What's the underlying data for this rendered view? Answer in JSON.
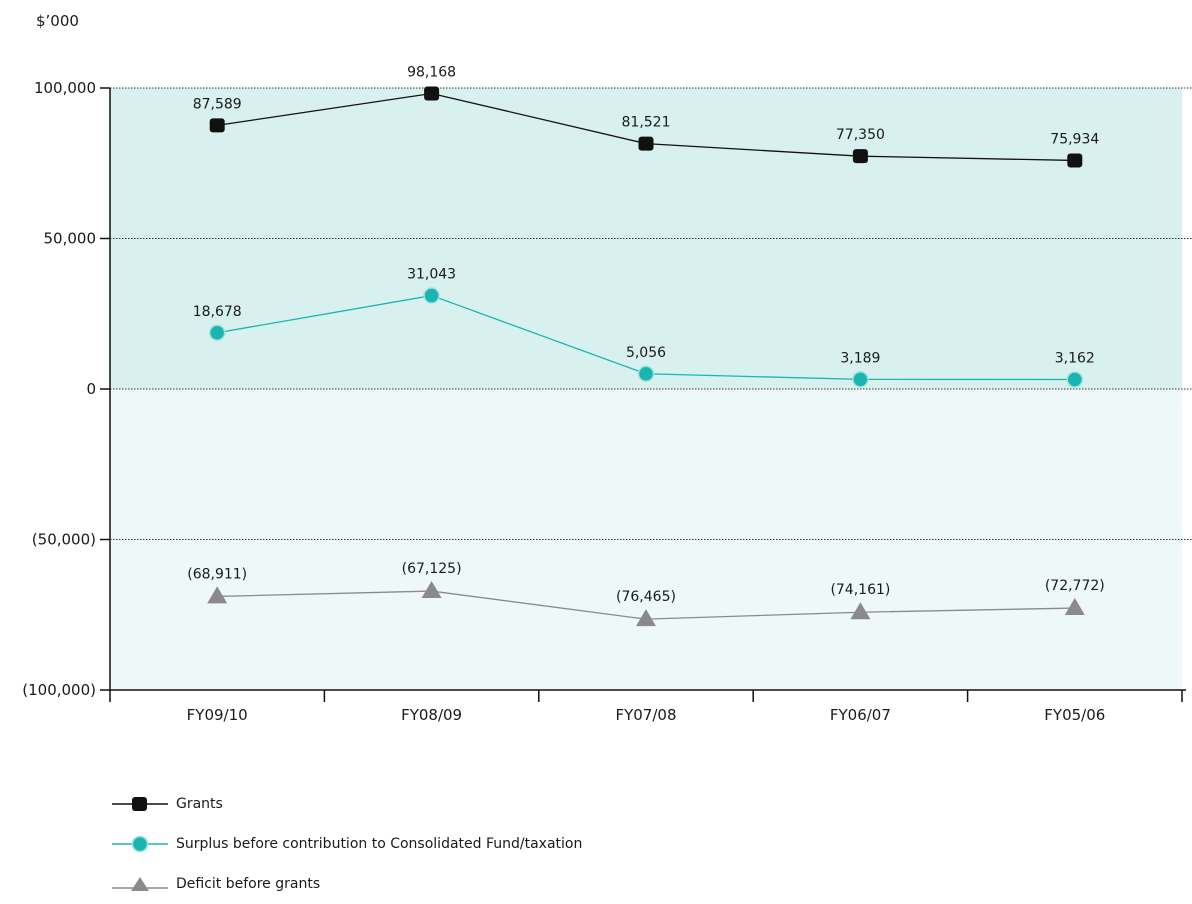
{
  "chart_data": {
    "type": "line",
    "unit_label": "$’000",
    "categories": [
      "FY09/10",
      "FY08/09",
      "FY07/08",
      "FY06/07",
      "FY05/06"
    ],
    "ylim": [
      -100000,
      100000
    ],
    "yticks": [
      100000,
      50000,
      0,
      -50000,
      -100000
    ],
    "ytick_labels": [
      "100,000",
      "50,000",
      "0",
      "(50,000)",
      "(100,000)"
    ],
    "grid": true,
    "legend_position": "bottom-left",
    "colors": {
      "positive_band": "#d8f1ee",
      "negative_band": "#eef8f8",
      "grants": "#111111",
      "surplus": "#1ab5b0",
      "deficit": "#8a8a8a"
    },
    "series": [
      {
        "name": "Grants",
        "marker": "square",
        "values": [
          87589,
          98168,
          81521,
          77350,
          75934
        ],
        "labels": [
          "87,589",
          "98,168",
          "81,521",
          "77,350",
          "75,934"
        ]
      },
      {
        "name": "Surplus before contribution to Consolidated Fund/taxation",
        "marker": "circle",
        "values": [
          18678,
          31043,
          5056,
          3189,
          3162
        ],
        "labels": [
          "18,678",
          "31,043",
          "5,056",
          "3,189",
          "3,162"
        ]
      },
      {
        "name": "Deficit before grants",
        "marker": "triangle",
        "values": [
          -68911,
          -67125,
          -76465,
          -74161,
          -72772
        ],
        "labels": [
          "(68,911)",
          "(67,125)",
          "(76,465)",
          "(74,161)",
          "(72,772)"
        ]
      }
    ]
  }
}
